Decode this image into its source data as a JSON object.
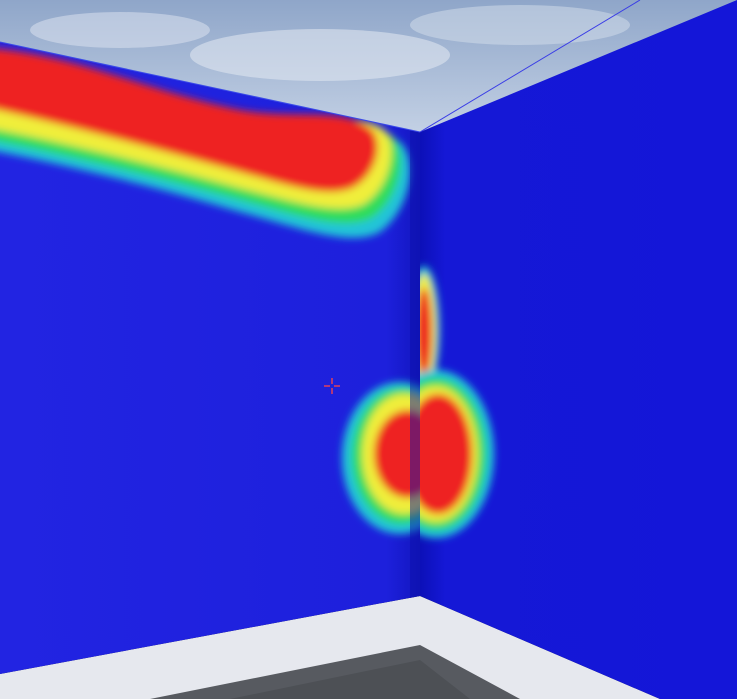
{
  "scene": {
    "description_type": "3d-viewport",
    "colors": {
      "sky_top": "#8fa6c9",
      "sky_bottom": "#c6d3e6",
      "wall_left": "#1f22e0",
      "wall_right": "#1414d8",
      "corner_shadow": "#0b0fa8",
      "floor_trim": "#e6e8ee",
      "floor": "#575a60",
      "heat_red": "#ee2424",
      "heat_yellow": "#f0ee3a",
      "heat_green": "#2edc5a",
      "heat_cyan": "#20c4d8",
      "crosshair": "#e0405a"
    }
  },
  "crosshair": {
    "icon": "crosshair-icon"
  }
}
